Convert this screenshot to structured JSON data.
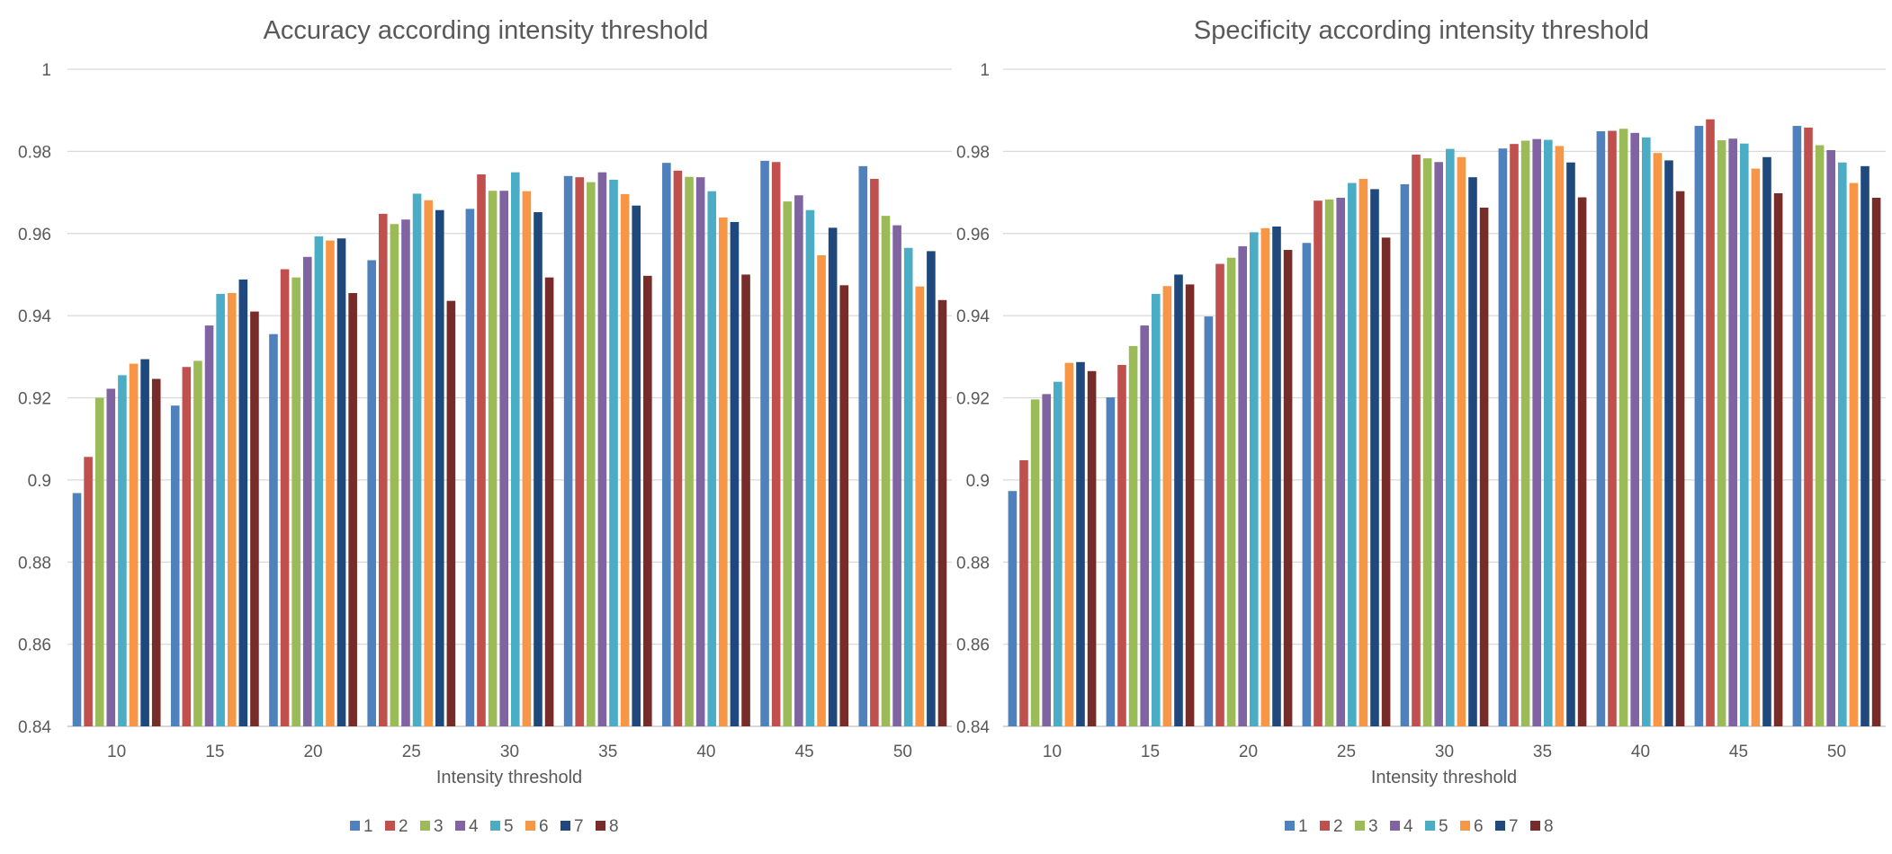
{
  "chart_data": [
    {
      "type": "bar",
      "title": "Accuracy according intensity threshold",
      "xlabel": "Intensity threshold",
      "ylabel": "",
      "ylim": [
        0.84,
        1
      ],
      "yticks": [
        0.84,
        0.86,
        0.88,
        0.9,
        0.92,
        0.94,
        0.96,
        0.98,
        1
      ],
      "ytick_labels": [
        "0.84",
        "0.86",
        "0.88",
        "0.9",
        "0.92",
        "0.94",
        "0.96",
        "0.98",
        "1"
      ],
      "grid": true,
      "legend_position": "bottom",
      "categories": [
        "10",
        "15",
        "20",
        "25",
        "30",
        "35",
        "40",
        "45",
        "50"
      ],
      "series": [
        {
          "name": "1",
          "color": "#4f81bd",
          "values": [
            0.8968,
            0.9181,
            0.9355,
            0.9535,
            0.966,
            0.974,
            0.9772,
            0.9777,
            0.9764
          ]
        },
        {
          "name": "2",
          "color": "#c0504d",
          "values": [
            0.9056,
            0.9275,
            0.9513,
            0.9648,
            0.9744,
            0.9737,
            0.9753,
            0.9774,
            0.9733
          ]
        },
        {
          "name": "3",
          "color": "#9bbb59",
          "values": [
            0.92,
            0.929,
            0.9493,
            0.9623,
            0.9704,
            0.9725,
            0.9738,
            0.9678,
            0.9643
          ]
        },
        {
          "name": "4",
          "color": "#8064a2",
          "values": [
            0.9222,
            0.9376,
            0.9543,
            0.9634,
            0.9704,
            0.9749,
            0.9737,
            0.9693,
            0.962
          ]
        },
        {
          "name": "5",
          "color": "#4bacc6",
          "values": [
            0.9255,
            0.9453,
            0.9593,
            0.9697,
            0.9749,
            0.9731,
            0.9703,
            0.9657,
            0.9565
          ]
        },
        {
          "name": "6",
          "color": "#f79646",
          "values": [
            0.9283,
            0.9455,
            0.9583,
            0.9681,
            0.9703,
            0.9696,
            0.9639,
            0.9547,
            0.9471
          ]
        },
        {
          "name": "7",
          "color": "#1f497d",
          "values": [
            0.9294,
            0.9488,
            0.9588,
            0.9657,
            0.9652,
            0.9668,
            0.9628,
            0.9614,
            0.9557
          ]
        },
        {
          "name": "8",
          "color": "#772c2a",
          "values": [
            0.9246,
            0.941,
            0.9455,
            0.9436,
            0.9493,
            0.9497,
            0.95,
            0.9474,
            0.9438
          ]
        }
      ]
    },
    {
      "type": "bar",
      "title": "Specificity according intensity threshold",
      "xlabel": "Intensity threshold",
      "ylabel": "",
      "ylim": [
        0.84,
        1
      ],
      "yticks": [
        0.84,
        0.86,
        0.88,
        0.9,
        0.92,
        0.94,
        0.96,
        0.98,
        1
      ],
      "ytick_labels": [
        "0.84",
        "0.86",
        "0.88",
        "0.9",
        "0.92",
        "0.94",
        "0.96",
        "0.98",
        "1"
      ],
      "grid": true,
      "legend_position": "bottom",
      "categories": [
        "10",
        "15",
        "20",
        "25",
        "30",
        "35",
        "40",
        "45",
        "50"
      ],
      "series": [
        {
          "name": "1",
          "color": "#4f81bd",
          "values": [
            0.8973,
            0.9201,
            0.9398,
            0.9577,
            0.972,
            0.9807,
            0.9849,
            0.9862,
            0.9862
          ]
        },
        {
          "name": "2",
          "color": "#c0504d",
          "values": [
            0.9048,
            0.928,
            0.9526,
            0.968,
            0.9792,
            0.9818,
            0.985,
            0.9878,
            0.9858
          ]
        },
        {
          "name": "3",
          "color": "#9bbb59",
          "values": [
            0.9196,
            0.9326,
            0.9541,
            0.9683,
            0.9783,
            0.9826,
            0.9855,
            0.9827,
            0.9815
          ]
        },
        {
          "name": "4",
          "color": "#8064a2",
          "values": [
            0.9209,
            0.9376,
            0.9569,
            0.9687,
            0.9774,
            0.983,
            0.9845,
            0.9831,
            0.9803
          ]
        },
        {
          "name": "5",
          "color": "#4bacc6",
          "values": [
            0.9239,
            0.9453,
            0.9603,
            0.9723,
            0.9806,
            0.9828,
            0.9834,
            0.9819,
            0.9773
          ]
        },
        {
          "name": "6",
          "color": "#f79646",
          "values": [
            0.9285,
            0.9472,
            0.9613,
            0.9733,
            0.9786,
            0.9813,
            0.9796,
            0.9758,
            0.9723
          ]
        },
        {
          "name": "7",
          "color": "#1f497d",
          "values": [
            0.9287,
            0.95,
            0.9617,
            0.9708,
            0.9737,
            0.9773,
            0.9778,
            0.9786,
            0.9764
          ]
        },
        {
          "name": "8",
          "color": "#772c2a",
          "values": [
            0.9265,
            0.9476,
            0.956,
            0.959,
            0.9663,
            0.9688,
            0.9703,
            0.9698,
            0.9687
          ]
        }
      ]
    }
  ]
}
